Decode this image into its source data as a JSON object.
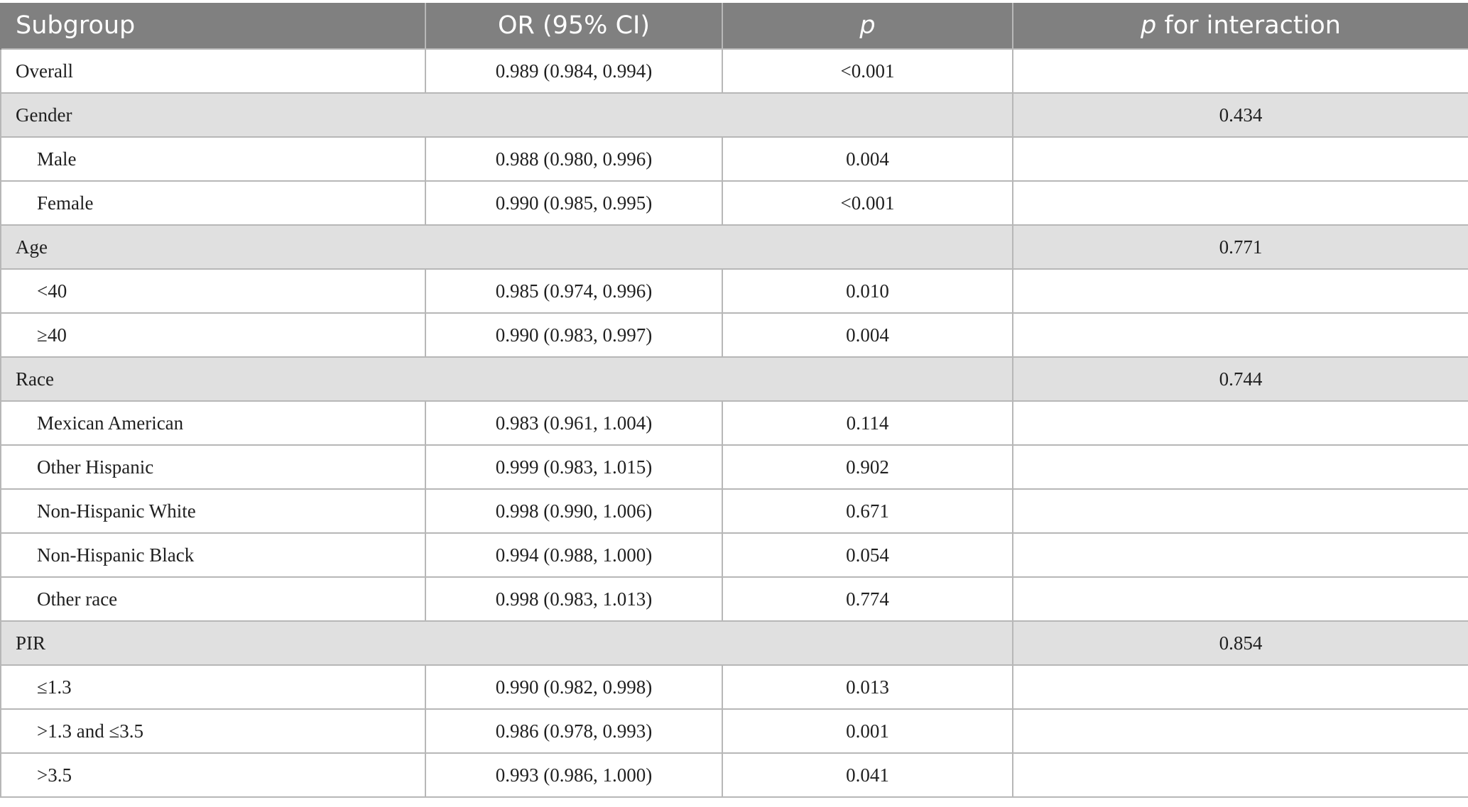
{
  "header": {
    "subgroup": "Subgroup",
    "or_ci": "OR (95% CI)",
    "p": "p",
    "p_interaction_italic": "p",
    "p_interaction_rest": " for interaction"
  },
  "rows": [
    {
      "type": "data",
      "indent": false,
      "label": "Overall",
      "or": "0.989 (0.984, 0.994)",
      "p": "<0.001",
      "pint": ""
    },
    {
      "type": "group",
      "label": "Gender",
      "pint": "0.434"
    },
    {
      "type": "data",
      "indent": true,
      "label": "Male",
      "or": "0.988 (0.980, 0.996)",
      "p": "0.004",
      "pint": ""
    },
    {
      "type": "data",
      "indent": true,
      "label": "Female",
      "or": "0.990 (0.985, 0.995)",
      "p": "<0.001",
      "pint": ""
    },
    {
      "type": "group",
      "label": "Age",
      "pint": "0.771"
    },
    {
      "type": "data",
      "indent": true,
      "label": "<40",
      "or": "0.985 (0.974, 0.996)",
      "p": "0.010",
      "pint": ""
    },
    {
      "type": "data",
      "indent": true,
      "label": "≥40",
      "or": "0.990 (0.983, 0.997)",
      "p": "0.004",
      "pint": ""
    },
    {
      "type": "group",
      "label": "Race",
      "pint": "0.744"
    },
    {
      "type": "data",
      "indent": true,
      "label": "Mexican American",
      "or": "0.983 (0.961, 1.004)",
      "p": "0.114",
      "pint": ""
    },
    {
      "type": "data",
      "indent": true,
      "label": "Other Hispanic",
      "or": "0.999 (0.983, 1.015)",
      "p": "0.902",
      "pint": ""
    },
    {
      "type": "data",
      "indent": true,
      "label": "Non-Hispanic White",
      "or": "0.998 (0.990, 1.006)",
      "p": "0.671",
      "pint": ""
    },
    {
      "type": "data",
      "indent": true,
      "label": "Non-Hispanic Black",
      "or": "0.994 (0.988, 1.000)",
      "p": "0.054",
      "pint": ""
    },
    {
      "type": "data",
      "indent": true,
      "label": "Other race",
      "or": "0.998 (0.983, 1.013)",
      "p": "0.774",
      "pint": ""
    },
    {
      "type": "group",
      "label": "PIR",
      "pint": "0.854"
    },
    {
      "type": "data",
      "indent": true,
      "label": "≤1.3",
      "or": "0.990 (0.982, 0.998)",
      "p": "0.013",
      "pint": ""
    },
    {
      "type": "data",
      "indent": true,
      "label": ">1.3 and ≤3.5",
      "or": "0.986 (0.978, 0.993)",
      "p": "0.001",
      "pint": ""
    },
    {
      "type": "data",
      "indent": true,
      "label": ">3.5",
      "or": "0.993 (0.986, 1.000)",
      "p": "0.041",
      "pint": ""
    }
  ],
  "colors": {
    "header_bg": "#808080",
    "group_bg": "#e0e0e0",
    "border": "#b7b7b7"
  }
}
